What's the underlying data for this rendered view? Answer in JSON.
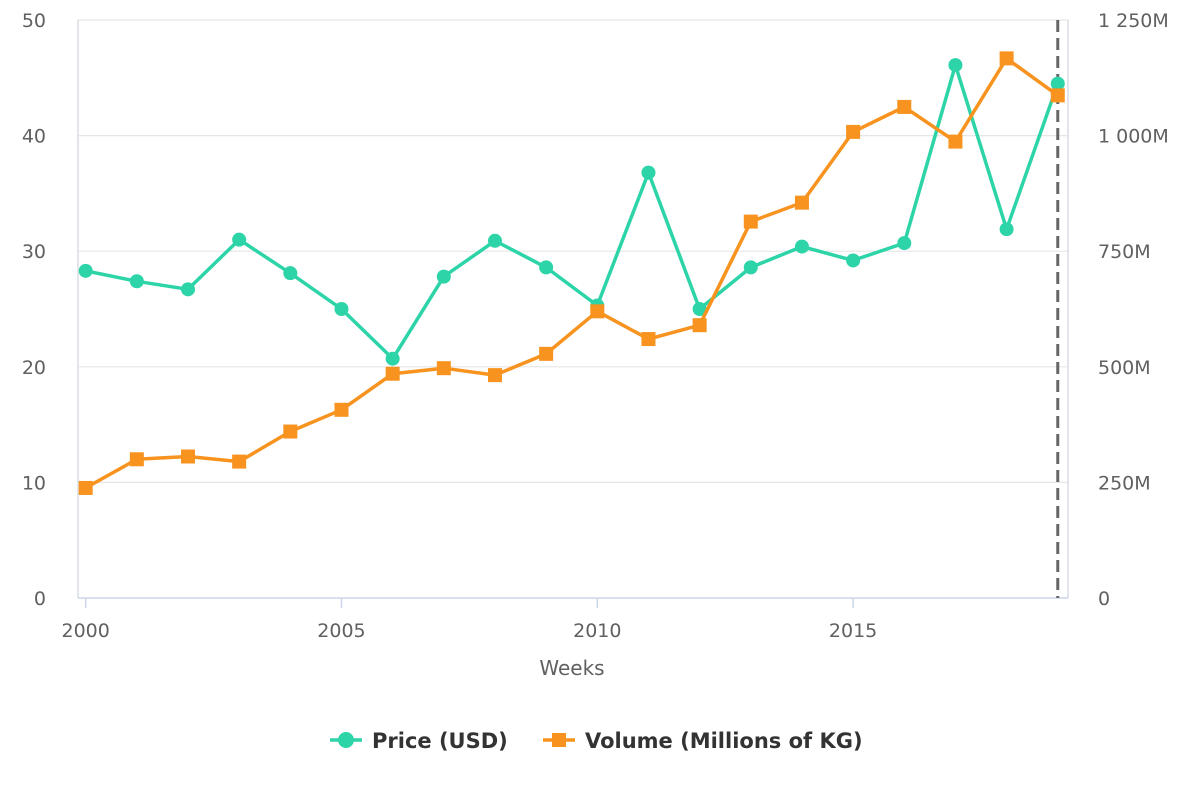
{
  "chart_data": {
    "type": "line",
    "x": [
      2000,
      2001,
      2002,
      2003,
      2004,
      2005,
      2006,
      2007,
      2008,
      2009,
      2010,
      2011,
      2012,
      2013,
      2014,
      2015,
      2016,
      2017,
      2018,
      2019
    ],
    "xlabel": "Weeks",
    "x_ticks": [
      2000,
      2005,
      2010,
      2015
    ],
    "x_tick_labels": [
      "2000",
      "2005",
      "2010",
      "2015"
    ],
    "xlim": [
      1999.85,
      2019.2
    ],
    "ylim_left": [
      0,
      50
    ],
    "y_left_ticks": [
      0,
      10,
      20,
      30,
      40,
      50
    ],
    "y_left_tick_labels": [
      "0",
      "10",
      "20",
      "30",
      "40",
      "50"
    ],
    "ylim_right": [
      0,
      1250
    ],
    "y_right_ticks": [
      0,
      250,
      500,
      750,
      1000,
      1250
    ],
    "y_right_tick_labels": [
      "0",
      "250M",
      "500M",
      "750M",
      "1 000M",
      "1 250M"
    ],
    "reference_line_x": 2019,
    "grid": true,
    "legend_position": "bottom-center",
    "series": [
      {
        "name": "Price (USD)",
        "axis": "left",
        "color": "#2dd4a8",
        "marker": "circle",
        "values": [
          28.3,
          27.4,
          26.7,
          31.0,
          28.1,
          25.0,
          20.7,
          27.8,
          30.9,
          28.6,
          25.3,
          36.8,
          25.0,
          28.6,
          30.4,
          29.2,
          30.7,
          46.1,
          31.9,
          44.5
        ]
      },
      {
        "name": "Volume (Millions of KG)",
        "axis": "right",
        "color": "#f7931e",
        "marker": "square",
        "values": [
          238,
          300,
          306,
          295,
          360,
          407,
          485,
          497,
          482,
          528,
          620,
          560,
          590,
          814,
          855,
          1008,
          1062,
          987,
          1167,
          1087
        ]
      }
    ]
  }
}
